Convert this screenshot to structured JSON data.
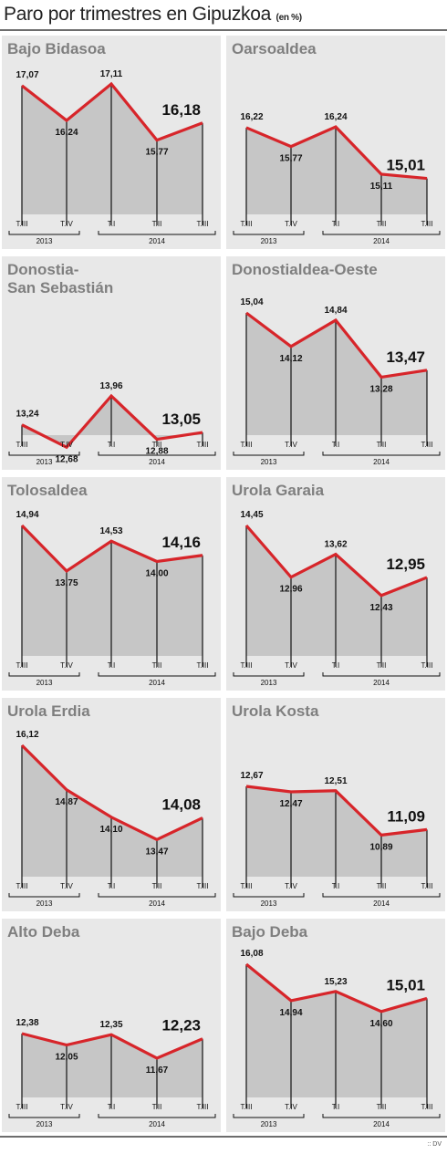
{
  "header": {
    "title": "Paro por trimestres en Gipuzkoa",
    "unit": "(en %)"
  },
  "source": ":: DV",
  "colors": {
    "line": "#d7252a",
    "area": "#c6c6c6",
    "panel": "#e8e8e8",
    "region": "#7f7f7f"
  },
  "chart_data": [
    {
      "type": "line",
      "title": "Bajo Bidasoa",
      "categories": [
        "T.III",
        "T.IV",
        "T.I",
        "T.II",
        "T.III"
      ],
      "years": [
        {
          "label": "2013",
          "span": [
            0,
            1
          ]
        },
        {
          "label": "2014",
          "span": [
            2,
            4
          ]
        }
      ],
      "values": [
        17.07,
        16.24,
        17.11,
        15.77,
        16.18
      ],
      "labels": [
        "17,07",
        "16,24",
        "17,11",
        "15,77",
        "16,18"
      ]
    },
    {
      "type": "line",
      "title": "Oarsoaldea",
      "categories": [
        "T.III",
        "T.IV",
        "T.I",
        "T.II",
        "T.III"
      ],
      "years": [
        {
          "label": "2013",
          "span": [
            0,
            1
          ]
        },
        {
          "label": "2014",
          "span": [
            2,
            4
          ]
        }
      ],
      "values": [
        16.22,
        15.77,
        16.24,
        15.11,
        15.01
      ],
      "labels": [
        "16,22",
        "15,77",
        "16,24",
        "15,11",
        "15,01"
      ]
    },
    {
      "type": "line",
      "title": "Donostia-\nSan Sebastián",
      "categories": [
        "T.III",
        "T.IV",
        "T.I",
        "T.II",
        "T.III"
      ],
      "years": [
        {
          "label": "2013",
          "span": [
            0,
            1
          ]
        },
        {
          "label": "2014",
          "span": [
            2,
            4
          ]
        }
      ],
      "values": [
        13.24,
        12.68,
        13.96,
        12.88,
        13.05
      ],
      "labels": [
        "13,24",
        "12,68",
        "13,96",
        "12,88",
        "13,05"
      ]
    },
    {
      "type": "line",
      "title": "Donostialdea-Oeste",
      "categories": [
        "T.III",
        "T.IV",
        "T.I",
        "T.II",
        "T.III"
      ],
      "years": [
        {
          "label": "2013",
          "span": [
            0,
            1
          ]
        },
        {
          "label": "2014",
          "span": [
            2,
            4
          ]
        }
      ],
      "values": [
        15.04,
        14.12,
        14.84,
        13.28,
        13.47
      ],
      "labels": [
        "15,04",
        "14,12",
        "14,84",
        "13,28",
        "13,47"
      ]
    },
    {
      "type": "line",
      "title": "Tolosaldea",
      "categories": [
        "T.III",
        "T.IV",
        "T.I",
        "T.II",
        "T.III"
      ],
      "years": [
        {
          "label": "2013",
          "span": [
            0,
            1
          ]
        },
        {
          "label": "2014",
          "span": [
            2,
            4
          ]
        }
      ],
      "values": [
        14.94,
        13.75,
        14.53,
        14.0,
        14.16
      ],
      "labels": [
        "14,94",
        "13,75",
        "14,53",
        "14,00",
        "14,16"
      ]
    },
    {
      "type": "line",
      "title": "Urola Garaia",
      "categories": [
        "T.III",
        "T.IV",
        "T.I",
        "T.II",
        "T.III"
      ],
      "years": [
        {
          "label": "2013",
          "span": [
            0,
            1
          ]
        },
        {
          "label": "2014",
          "span": [
            2,
            4
          ]
        }
      ],
      "values": [
        14.45,
        12.96,
        13.62,
        12.43,
        12.95
      ],
      "labels": [
        "14,45",
        "12,96",
        "13,62",
        "12,43",
        "12,95"
      ]
    },
    {
      "type": "line",
      "title": "Urola Erdia",
      "categories": [
        "T.III",
        "T.IV",
        "T.I",
        "T.II",
        "T.III"
      ],
      "years": [
        {
          "label": "2013",
          "span": [
            0,
            1
          ]
        },
        {
          "label": "2014",
          "span": [
            2,
            4
          ]
        }
      ],
      "values": [
        16.12,
        14.87,
        14.1,
        13.47,
        14.08
      ],
      "labels": [
        "16,12",
        "14,87",
        "14,10",
        "13,47",
        "14,08"
      ]
    },
    {
      "type": "line",
      "title": "Urola Kosta",
      "categories": [
        "T.III",
        "T.IV",
        "T.I",
        "T.II",
        "T.III"
      ],
      "years": [
        {
          "label": "2013",
          "span": [
            0,
            1
          ]
        },
        {
          "label": "2014",
          "span": [
            2,
            4
          ]
        }
      ],
      "values": [
        12.67,
        12.47,
        12.51,
        10.89,
        11.09
      ],
      "labels": [
        "12,67",
        "12,47",
        "12,51",
        "10,89",
        "11,09"
      ]
    },
    {
      "type": "line",
      "title": "Alto Deba",
      "categories": [
        "T.III",
        "T.IV",
        "T.I",
        "T.II",
        "T.III"
      ],
      "years": [
        {
          "label": "2013",
          "span": [
            0,
            1
          ]
        },
        {
          "label": "2014",
          "span": [
            2,
            4
          ]
        }
      ],
      "values": [
        12.38,
        12.05,
        12.35,
        11.67,
        12.23
      ],
      "labels": [
        "12,38",
        "12,05",
        "12,35",
        "11,67",
        "12,23"
      ]
    },
    {
      "type": "line",
      "title": "Bajo Deba",
      "categories": [
        "T.III",
        "T.IV",
        "T.I",
        "T.II",
        "T.III"
      ],
      "years": [
        {
          "label": "2013",
          "span": [
            0,
            1
          ]
        },
        {
          "label": "2014",
          "span": [
            2,
            4
          ]
        }
      ],
      "values": [
        16.08,
        14.94,
        15.23,
        14.6,
        15.01
      ],
      "labels": [
        "16,08",
        "14,94",
        "15,23",
        "14,60",
        "15,01"
      ]
    }
  ]
}
